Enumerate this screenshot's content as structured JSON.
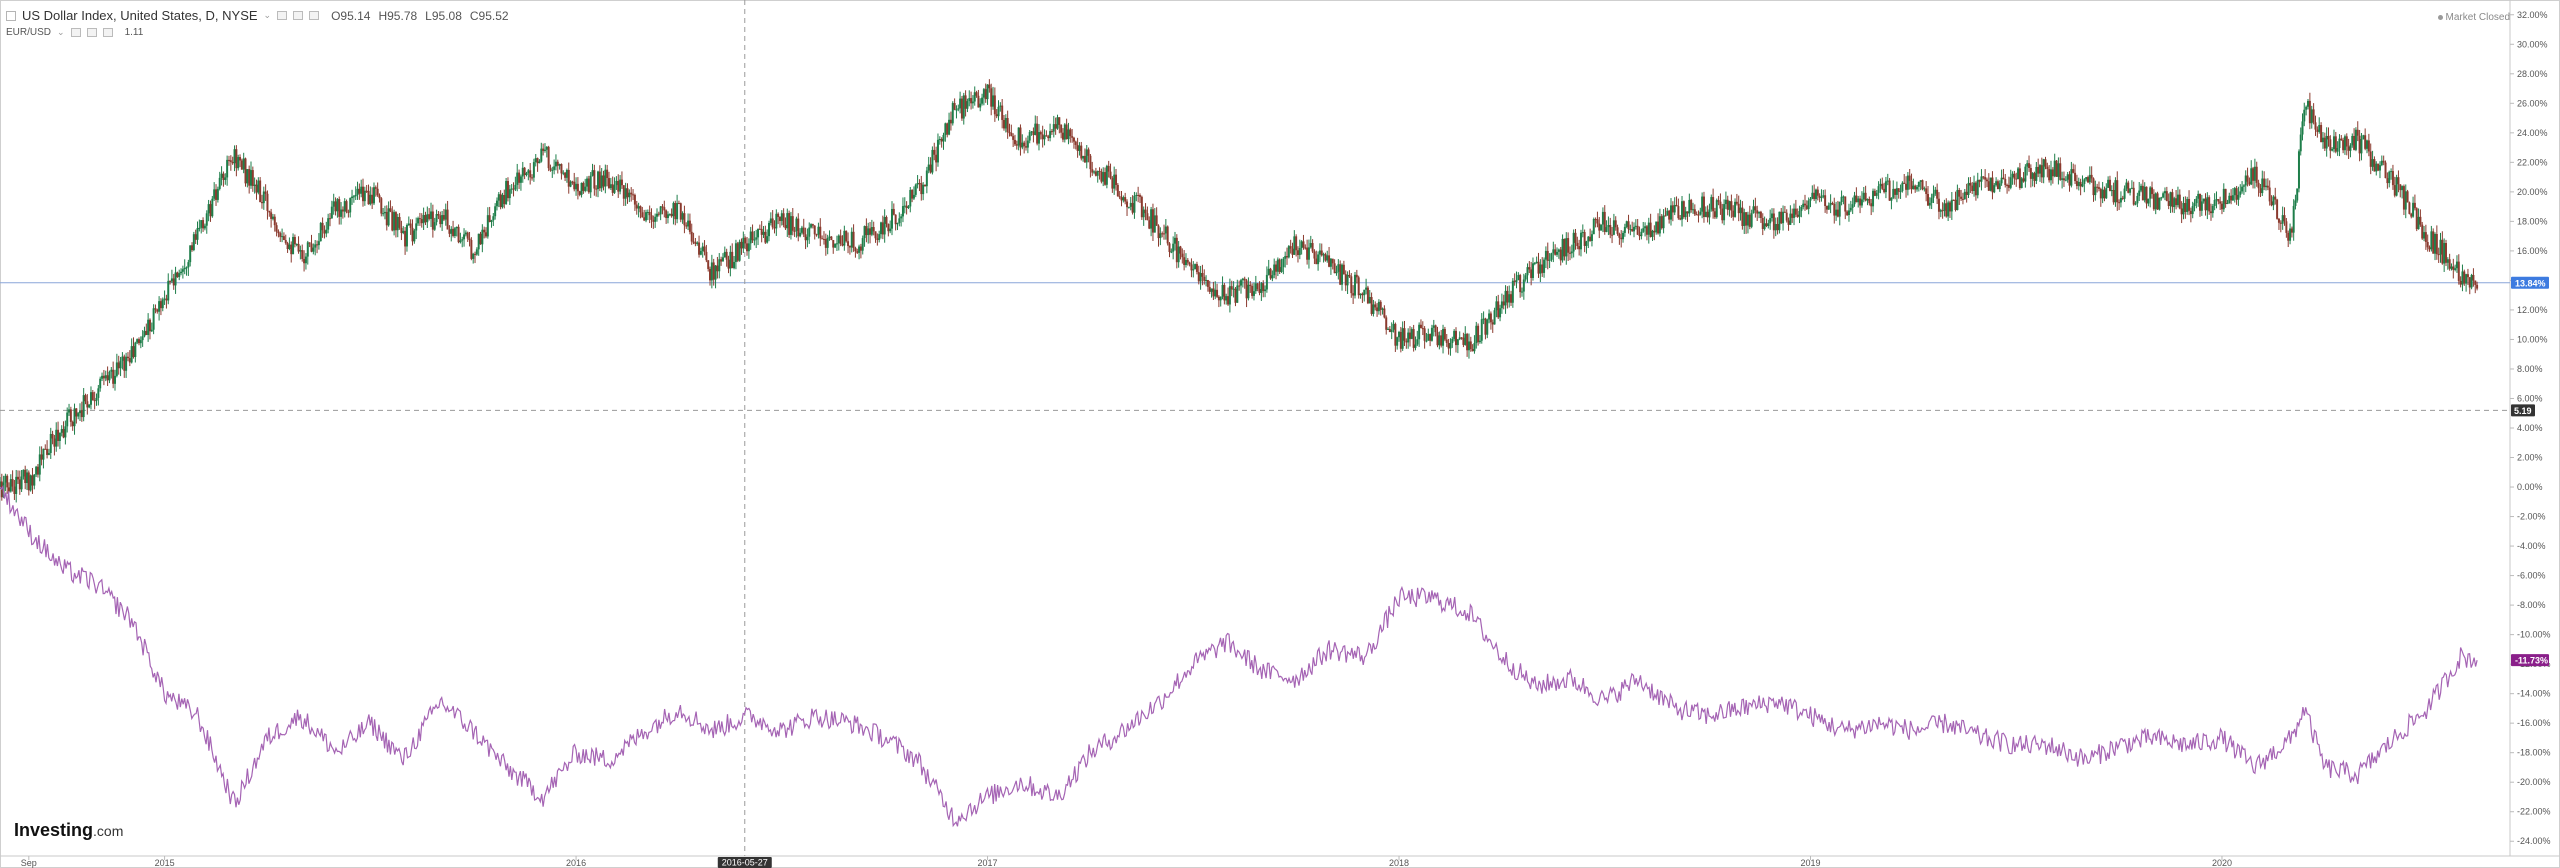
{
  "legend": {
    "title": "US Dollar Index, United States, D, NYSE",
    "open": "O95.14",
    "high": "H95.78",
    "low": "L95.08",
    "close": "C95.52",
    "compare_symbol": "EUR/USD",
    "compare_value": "1.11"
  },
  "market_status": "Market Closed",
  "logo": {
    "main": "Investing",
    "suffix": ".com"
  },
  "colors": {
    "up": "#1e7e4a",
    "down": "#8b3a2e",
    "compare_line": "#a564b4",
    "usd_badge": "#3d7be0",
    "eur_badge": "#8a1f8a",
    "crosshair_badge": "#333333",
    "h_line": "#8aa6d9"
  },
  "chart_data": {
    "type": "line",
    "title": "US Dollar Index, United States, D, NYSE",
    "xlabel": "",
    "ylabel": "",
    "y_axis": {
      "ylim": [
        -25,
        33
      ],
      "tick_labels": [
        "32.00%",
        "30.00%",
        "28.00%",
        "26.00%",
        "24.00%",
        "22.00%",
        "20.00%",
        "18.00%",
        "16.00%",
        "14.00%",
        "12.00%",
        "10.00%",
        "8.00%",
        "6.00%",
        "4.00%",
        "2.00%",
        "0.00%",
        "-2.00%",
        "-4.00%",
        "-6.00%",
        "-8.00%",
        "-10.00%",
        "-12.00%",
        "-14.00%",
        "-16.00%",
        "-18.00%",
        "-20.00%",
        "-22.00%",
        "-24.00%"
      ],
      "tick_values": [
        32,
        30,
        28,
        26,
        24,
        22,
        20,
        18,
        16,
        14,
        12,
        10,
        8,
        6,
        4,
        2,
        0,
        -2,
        -4,
        -6,
        -8,
        -10,
        -12,
        -14,
        -16,
        -18,
        -20,
        -22,
        -24
      ]
    },
    "x_axis": {
      "range": [
        2014.6,
        2020.7
      ],
      "ticks": [
        {
          "label": "Sep",
          "value": 2014.67
        },
        {
          "label": "2015",
          "value": 2015.0
        },
        {
          "label": "2016",
          "value": 2016.0
        },
        {
          "label": "2017",
          "value": 2017.0
        },
        {
          "label": "2018",
          "value": 2018.0
        },
        {
          "label": "2019",
          "value": 2019.0
        },
        {
          "label": "2020",
          "value": 2020.0
        }
      ]
    },
    "series": [
      {
        "name": "US Dollar Index, United States, D, NYSE",
        "style": "candles",
        "last_value_label": "13.84%",
        "last_value": 13.84,
        "points": [
          [
            2014.6,
            0
          ],
          [
            2014.67,
            0.5
          ],
          [
            2014.75,
            4
          ],
          [
            2014.83,
            6.5
          ],
          [
            2014.92,
            9
          ],
          [
            2015.0,
            13
          ],
          [
            2015.08,
            17
          ],
          [
            2015.17,
            22.5
          ],
          [
            2015.25,
            19
          ],
          [
            2015.33,
            15.5
          ],
          [
            2015.42,
            19
          ],
          [
            2015.5,
            20
          ],
          [
            2015.58,
            17
          ],
          [
            2015.67,
            18.5
          ],
          [
            2015.75,
            16
          ],
          [
            2015.83,
            20
          ],
          [
            2015.92,
            22.5
          ],
          [
            2016.0,
            20.5
          ],
          [
            2016.08,
            21
          ],
          [
            2016.17,
            18
          ],
          [
            2016.25,
            19
          ],
          [
            2016.33,
            14.5
          ],
          [
            2016.42,
            16.5
          ],
          [
            2016.5,
            18
          ],
          [
            2016.58,
            17
          ],
          [
            2016.67,
            16.5
          ],
          [
            2016.75,
            17.5
          ],
          [
            2016.83,
            20
          ],
          [
            2016.92,
            25.5
          ],
          [
            2017.0,
            26.5
          ],
          [
            2017.08,
            23.5
          ],
          [
            2017.17,
            24.5
          ],
          [
            2017.25,
            22
          ],
          [
            2017.33,
            20
          ],
          [
            2017.42,
            17.5
          ],
          [
            2017.5,
            14.5
          ],
          [
            2017.58,
            13
          ],
          [
            2017.67,
            14
          ],
          [
            2017.75,
            16.5
          ],
          [
            2017.83,
            15
          ],
          [
            2017.92,
            13
          ],
          [
            2018.0,
            10
          ],
          [
            2018.08,
            10.5
          ],
          [
            2018.17,
            9.5
          ],
          [
            2018.25,
            12.5
          ],
          [
            2018.33,
            15
          ],
          [
            2018.42,
            16.5
          ],
          [
            2018.5,
            18
          ],
          [
            2018.58,
            17
          ],
          [
            2018.67,
            18.5
          ],
          [
            2018.75,
            19
          ],
          [
            2018.83,
            18.5
          ],
          [
            2018.92,
            18
          ],
          [
            2019.0,
            19.5
          ],
          [
            2019.08,
            19
          ],
          [
            2019.17,
            20
          ],
          [
            2019.25,
            20.5
          ],
          [
            2019.33,
            19
          ],
          [
            2019.42,
            20.5
          ],
          [
            2019.5,
            21
          ],
          [
            2019.58,
            21.5
          ],
          [
            2019.67,
            20.5
          ],
          [
            2019.75,
            20
          ],
          [
            2019.83,
            19.5
          ],
          [
            2019.92,
            19
          ],
          [
            2020.0,
            19.5
          ],
          [
            2020.08,
            21
          ],
          [
            2020.17,
            17
          ],
          [
            2020.2,
            26
          ],
          [
            2020.25,
            23
          ],
          [
            2020.33,
            23.5
          ],
          [
            2020.42,
            20.5
          ],
          [
            2020.5,
            17
          ],
          [
            2020.58,
            14.5
          ],
          [
            2020.62,
            13.84
          ]
        ]
      },
      {
        "name": "EUR/USD",
        "style": "line",
        "last_value_label": "-11.73%",
        "last_value": -11.73,
        "points": [
          [
            2014.6,
            0
          ],
          [
            2014.67,
            -3
          ],
          [
            2014.75,
            -5.5
          ],
          [
            2014.83,
            -6.5
          ],
          [
            2014.92,
            -9
          ],
          [
            2015.0,
            -14
          ],
          [
            2015.08,
            -15.5
          ],
          [
            2015.17,
            -21.5
          ],
          [
            2015.25,
            -17
          ],
          [
            2015.33,
            -15.5
          ],
          [
            2015.42,
            -18
          ],
          [
            2015.5,
            -16
          ],
          [
            2015.58,
            -18.5
          ],
          [
            2015.67,
            -14.5
          ],
          [
            2015.75,
            -16.5
          ],
          [
            2015.83,
            -19
          ],
          [
            2015.92,
            -21
          ],
          [
            2016.0,
            -18
          ],
          [
            2016.08,
            -18.5
          ],
          [
            2016.17,
            -16.5
          ],
          [
            2016.25,
            -15
          ],
          [
            2016.33,
            -16.5
          ],
          [
            2016.42,
            -15.5
          ],
          [
            2016.5,
            -16.5
          ],
          [
            2016.58,
            -15.5
          ],
          [
            2016.67,
            -16
          ],
          [
            2016.75,
            -17
          ],
          [
            2016.83,
            -18.5
          ],
          [
            2016.92,
            -22.5
          ],
          [
            2017.0,
            -21
          ],
          [
            2017.08,
            -20
          ],
          [
            2017.17,
            -21
          ],
          [
            2017.25,
            -18
          ],
          [
            2017.33,
            -16.5
          ],
          [
            2017.42,
            -14.5
          ],
          [
            2017.5,
            -12
          ],
          [
            2017.58,
            -10.5
          ],
          [
            2017.67,
            -12.5
          ],
          [
            2017.75,
            -13
          ],
          [
            2017.83,
            -11
          ],
          [
            2017.92,
            -11.5
          ],
          [
            2018.0,
            -7.5
          ],
          [
            2018.08,
            -7.5
          ],
          [
            2018.17,
            -8.5
          ],
          [
            2018.25,
            -11.5
          ],
          [
            2018.33,
            -13.5
          ],
          [
            2018.42,
            -13
          ],
          [
            2018.5,
            -14.5
          ],
          [
            2018.58,
            -13
          ],
          [
            2018.67,
            -15
          ],
          [
            2018.75,
            -15.5
          ],
          [
            2018.83,
            -15
          ],
          [
            2018.92,
            -14.5
          ],
          [
            2019.0,
            -15.5
          ],
          [
            2019.08,
            -16.5
          ],
          [
            2019.17,
            -16
          ],
          [
            2019.25,
            -16.5
          ],
          [
            2019.33,
            -16
          ],
          [
            2019.42,
            -17
          ],
          [
            2019.5,
            -17.5
          ],
          [
            2019.58,
            -17.5
          ],
          [
            2019.67,
            -18.5
          ],
          [
            2019.75,
            -17.5
          ],
          [
            2019.83,
            -17
          ],
          [
            2019.92,
            -17.5
          ],
          [
            2020.0,
            -17
          ],
          [
            2020.08,
            -19
          ],
          [
            2020.17,
            -17
          ],
          [
            2020.2,
            -15
          ],
          [
            2020.25,
            -19
          ],
          [
            2020.33,
            -19.5
          ],
          [
            2020.42,
            -17
          ],
          [
            2020.5,
            -15
          ],
          [
            2020.58,
            -11.5
          ],
          [
            2020.62,
            -11.73
          ]
        ]
      }
    ],
    "reference_lines": [
      {
        "orientation": "horizontal",
        "value": 13.84,
        "style": "solid"
      },
      {
        "orientation": "horizontal",
        "value": 5.19,
        "style": "dashed"
      },
      {
        "orientation": "vertical",
        "value": 2016.41,
        "style": "dashed"
      }
    ],
    "crosshair": {
      "x_label": "2016-05-27",
      "y_label": "5.19"
    },
    "grid": false,
    "legend": "top-left"
  }
}
